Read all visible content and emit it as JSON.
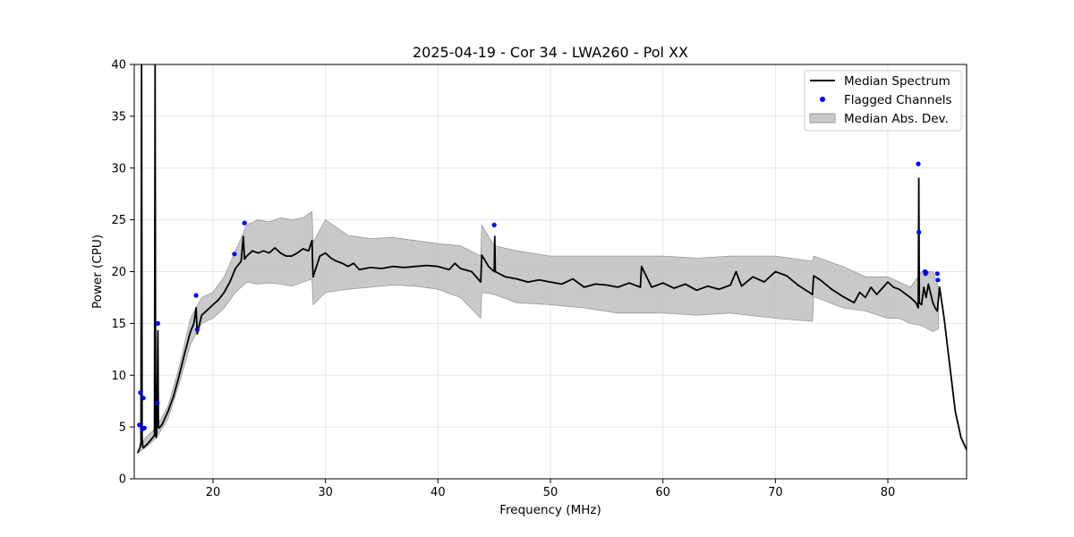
{
  "chart_data": {
    "type": "line",
    "title": "2025-04-19 - Cor 34 - LWA260 - Pol XX",
    "xlabel": "Frequency (MHz)",
    "ylabel": "Power (CPU)",
    "xlim": [
      13.0,
      87.0
    ],
    "ylim": [
      0,
      40
    ],
    "xticks": [
      20,
      30,
      40,
      50,
      60,
      70,
      80
    ],
    "yticks": [
      0,
      5,
      10,
      15,
      20,
      25,
      30,
      35,
      40
    ],
    "grid": true,
    "legend_position": "top-right",
    "colors": {
      "median": "#000000",
      "flagged": "#0000ff",
      "mad_fill": "#bfbfbf",
      "mad_edge": "#9a9a9a"
    },
    "series": [
      {
        "name": "Median Spectrum",
        "kind": "line",
        "x": [
          13.3,
          13.5,
          13.6,
          13.65,
          13.7,
          13.75,
          13.8,
          13.9,
          14.0,
          14.2,
          14.5,
          14.8,
          14.85,
          14.9,
          14.95,
          15.0,
          15.1,
          15.15,
          15.2,
          15.3,
          15.5,
          16.0,
          16.5,
          17.0,
          17.5,
          18.0,
          18.3,
          18.5,
          18.6,
          18.7,
          19.0,
          19.5,
          20.0,
          20.5,
          21.0,
          21.5,
          22.0,
          22.5,
          22.7,
          22.8,
          23.0,
          23.5,
          24.0,
          24.5,
          25.0,
          25.5,
          26.0,
          26.5,
          27.0,
          27.5,
          28.0,
          28.5,
          28.8,
          28.9,
          29.5,
          30.0,
          30.5,
          31.0,
          31.5,
          32.0,
          32.5,
          33.0,
          34.0,
          35.0,
          36.0,
          37.0,
          38.0,
          39.0,
          40.0,
          41.0,
          41.5,
          42.0,
          43.0,
          43.8,
          43.9,
          44.5,
          45.0,
          45.05,
          45.1,
          46.0,
          47.0,
          48.0,
          49.0,
          50.0,
          51.0,
          52.0,
          53.0,
          54.0,
          55.0,
          56.0,
          57.0,
          58.0,
          58.1,
          59.0,
          60.0,
          61.0,
          62.0,
          63.0,
          64.0,
          65.0,
          66.0,
          66.5,
          67.0,
          68.0,
          69.0,
          70.0,
          71.0,
          72.0,
          73.0,
          73.3,
          73.4,
          74.0,
          75.0,
          76.0,
          77.0,
          77.5,
          78.0,
          78.5,
          79.0,
          80.0,
          80.5,
          81.0,
          82.0,
          82.5,
          82.7,
          82.75,
          82.8,
          83.0,
          83.2,
          83.4,
          83.6,
          84.0,
          84.2,
          84.4,
          84.6,
          85.0,
          85.5,
          86.0,
          86.5,
          87.0
        ],
        "y": [
          2.5,
          3.0,
          3.5,
          40.0,
          4.0,
          3.2,
          3.0,
          3.1,
          3.2,
          3.4,
          3.8,
          4.2,
          40.0,
          4.5,
          4.0,
          4.4,
          14.3,
          5.0,
          4.9,
          5.0,
          5.3,
          6.5,
          8.0,
          10.0,
          12.2,
          14.2,
          15.0,
          16.5,
          14.0,
          14.5,
          15.8,
          16.3,
          16.8,
          17.3,
          18.0,
          19.0,
          20.3,
          21.0,
          23.4,
          21.2,
          21.5,
          22.0,
          21.8,
          22.0,
          21.8,
          22.3,
          21.8,
          21.5,
          21.5,
          21.8,
          22.2,
          22.0,
          23.0,
          19.5,
          21.5,
          21.8,
          21.3,
          21.0,
          20.8,
          20.5,
          20.8,
          20.2,
          20.4,
          20.3,
          20.5,
          20.4,
          20.5,
          20.6,
          20.5,
          20.2,
          20.8,
          20.3,
          20.0,
          19.0,
          21.6,
          20.5,
          20.0,
          23.4,
          20.0,
          19.5,
          19.3,
          19.0,
          19.2,
          19.0,
          18.8,
          19.3,
          18.5,
          18.8,
          18.7,
          18.5,
          18.9,
          18.5,
          20.5,
          18.5,
          18.9,
          18.4,
          18.8,
          18.2,
          18.6,
          18.3,
          18.7,
          20.0,
          18.6,
          19.5,
          19.0,
          20.0,
          19.6,
          18.7,
          18.0,
          17.8,
          19.6,
          19.2,
          18.3,
          17.6,
          17.0,
          18.0,
          17.5,
          18.5,
          17.8,
          19.0,
          18.5,
          18.3,
          17.5,
          17.0,
          16.5,
          29.0,
          17.0,
          16.8,
          18.5,
          17.5,
          18.8,
          17.0,
          16.5,
          16.2,
          18.5,
          15.5,
          11.0,
          6.5,
          4.0,
          2.8
        ]
      },
      {
        "name": "Flagged Channels",
        "kind": "scatter",
        "x": [
          13.45,
          13.55,
          13.7,
          13.8,
          13.9,
          15.1,
          15.05,
          18.5,
          18.6,
          21.9,
          22.8,
          45.0,
          82.7,
          82.75,
          83.3,
          83.35,
          83.4,
          84.4,
          84.45
        ],
        "y": [
          5.2,
          8.3,
          4.8,
          7.8,
          4.9,
          15.0,
          7.3,
          17.7,
          14.4,
          21.7,
          24.7,
          24.5,
          30.4,
          23.8,
          20.0,
          19.8,
          19.9,
          19.8,
          19.2
        ]
      },
      {
        "name": "Median Abs. Dev.",
        "kind": "band",
        "x": [
          13.3,
          14.0,
          15.0,
          16.0,
          17.0,
          18.0,
          19.0,
          20.0,
          21.0,
          22.0,
          23.0,
          24.0,
          25.0,
          26.0,
          27.0,
          28.0,
          28.8,
          28.9,
          30.0,
          32.0,
          34.0,
          36.0,
          38.0,
          40.0,
          42.0,
          43.8,
          43.9,
          45.0,
          47.0,
          50.0,
          53.0,
          56.0,
          60.0,
          63.0,
          66.0,
          70.0,
          73.3,
          73.4,
          76.0,
          78.0,
          80.0,
          81.0,
          82.0,
          83.0,
          84.0,
          84.5
        ],
        "lower": [
          2.5,
          3.0,
          4.0,
          5.8,
          9.2,
          13.0,
          15.0,
          15.5,
          16.5,
          18.0,
          19.0,
          18.8,
          18.9,
          18.8,
          18.6,
          19.0,
          19.3,
          16.8,
          18.0,
          18.3,
          18.5,
          18.7,
          18.6,
          18.3,
          17.5,
          15.5,
          18.0,
          17.8,
          17.0,
          16.8,
          16.5,
          16.0,
          16.0,
          15.8,
          16.0,
          15.5,
          15.2,
          17.6,
          16.5,
          16.2,
          15.5,
          15.5,
          15.0,
          14.8,
          14.2,
          14.5
        ],
        "upper": [
          2.5,
          4.0,
          5.0,
          7.0,
          10.8,
          15.5,
          17.5,
          18.0,
          19.5,
          22.0,
          24.5,
          25.0,
          24.8,
          25.2,
          25.0,
          25.2,
          25.8,
          22.8,
          25.0,
          23.5,
          23.2,
          23.3,
          23.0,
          22.7,
          22.5,
          21.5,
          24.5,
          22.5,
          22.0,
          21.5,
          21.5,
          21.5,
          21.5,
          21.3,
          21.5,
          21.5,
          21.0,
          21.5,
          20.5,
          19.5,
          19.5,
          19.0,
          18.5,
          20.0,
          20.0,
          18.5
        ]
      }
    ]
  }
}
